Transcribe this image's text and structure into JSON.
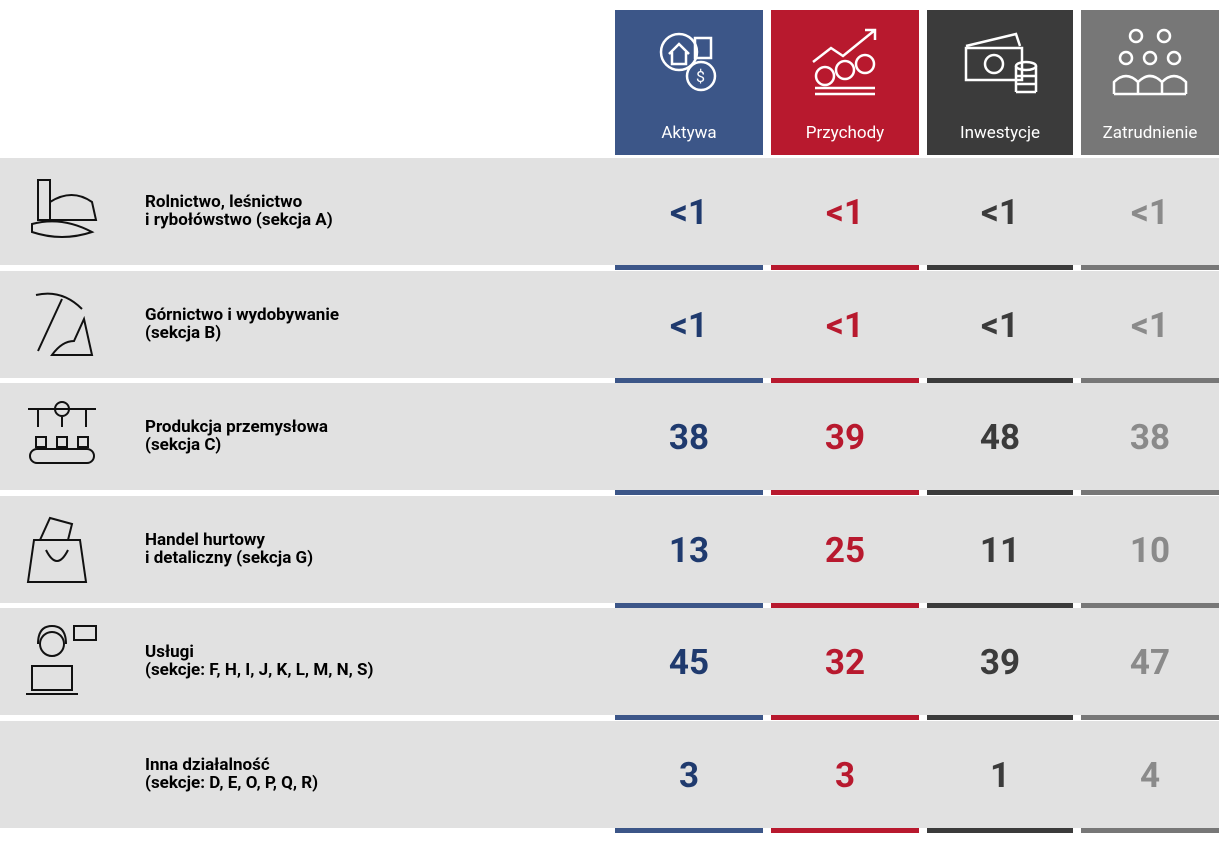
{
  "columns": [
    {
      "label": "Aktywa",
      "color": "#3c5688",
      "text_color": "#1f3a6e"
    },
    {
      "label": "Przychody",
      "color": "#b8192e",
      "text_color": "#b8192e"
    },
    {
      "label": "Inwestycje",
      "color": "#3b3b3b",
      "text_color": "#3b3b3b"
    },
    {
      "label": "Zatrudnienie",
      "color": "#777777",
      "text_color": "#8a8a8a"
    }
  ],
  "rows": [
    {
      "label": [
        "Rolnictwo, leśnictwo",
        "i rybołówstwo (sekcja A)"
      ],
      "values": [
        "<1",
        "<1",
        "<1",
        "<1"
      ]
    },
    {
      "label": [
        "Górnictwo i wydobywanie",
        "(sekcja B)"
      ],
      "values": [
        "<1",
        "<1",
        "<1",
        "<1"
      ]
    },
    {
      "label": [
        "Produkcja przemysłowa",
        "(sekcja C)"
      ],
      "values": [
        38,
        39,
        48,
        38
      ]
    },
    {
      "label": [
        "Handel hurtowy",
        "i detaliczny (sekcja G)"
      ],
      "values": [
        13,
        25,
        11,
        10
      ]
    },
    {
      "label": [
        "Usługi",
        "(sekcje: F, H, I, J, K, L, M, N, S)"
      ],
      "values": [
        45,
        32,
        39,
        47
      ]
    },
    {
      "label": [
        "Inna działalność",
        "(sekcje: D, E, O, P, Q, R)"
      ],
      "values": [
        3,
        3,
        1,
        4
      ]
    }
  ]
}
